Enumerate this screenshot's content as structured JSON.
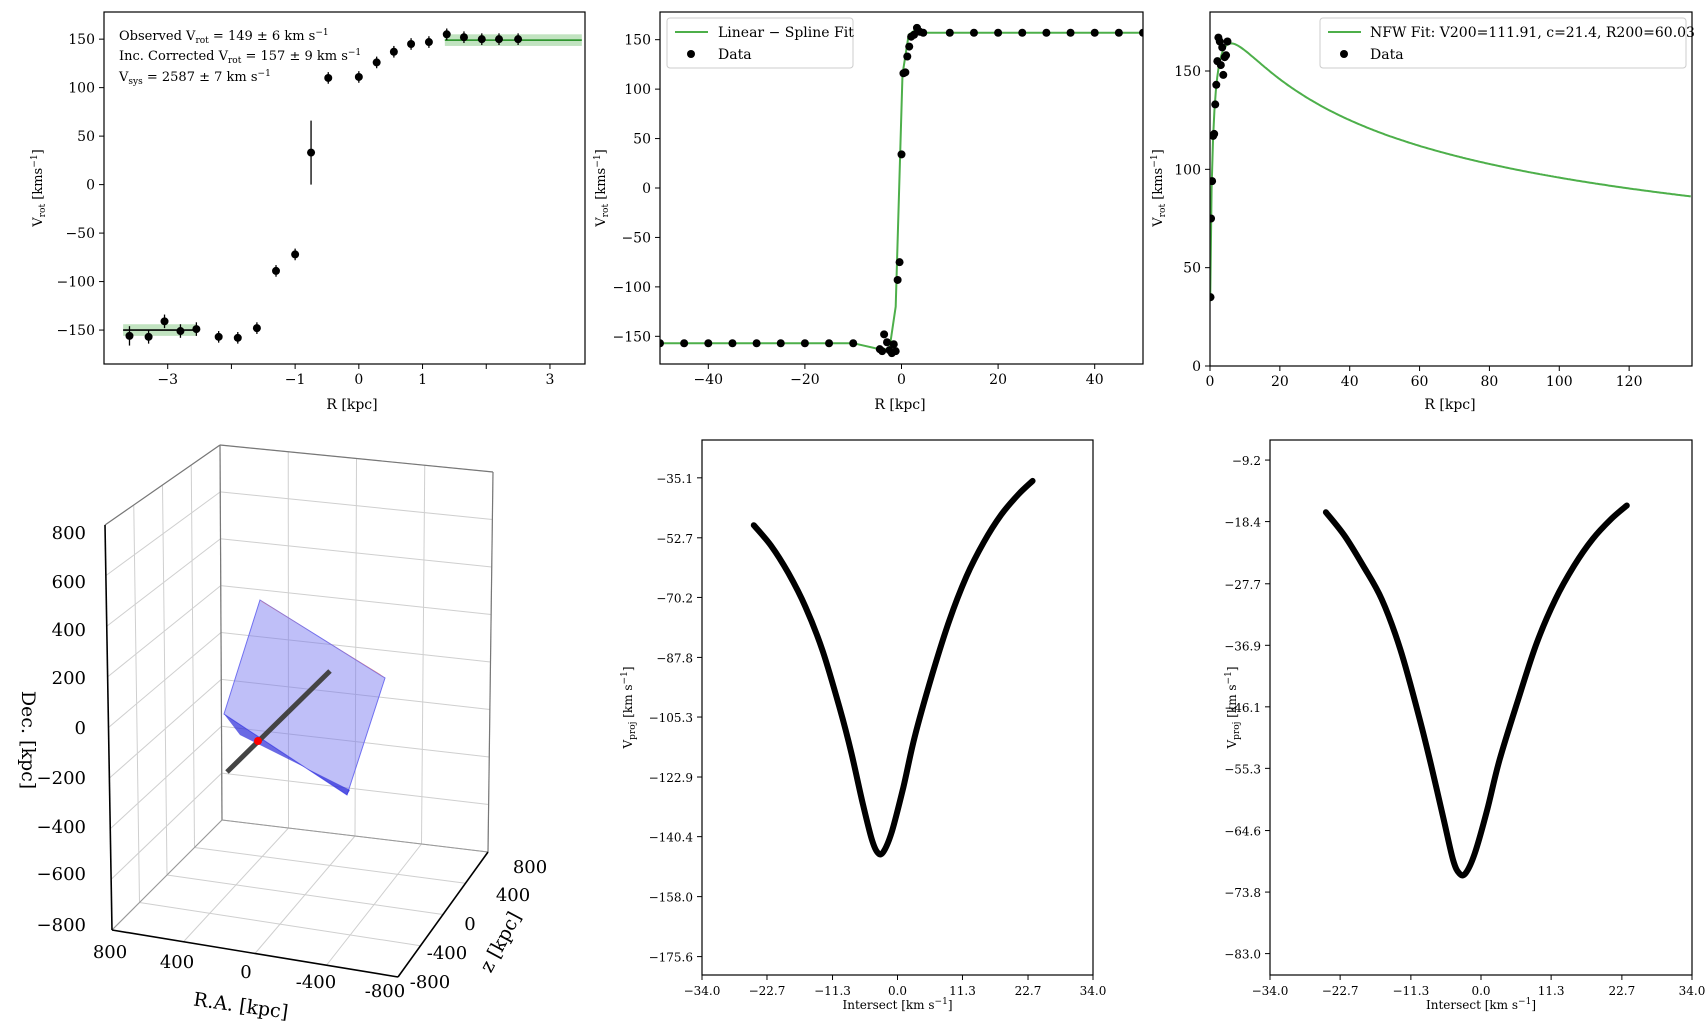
{
  "figure": {
    "colors": {
      "fit": "#4daf4a",
      "data": "#000000",
      "band": "#4daf4a",
      "plane": "#7070f0",
      "planeEdge": "#2a2ad8",
      "axisLine": "#555555",
      "center": "#ff0000",
      "planeRed": "#e08080"
    }
  },
  "chart_data": [
    {
      "type": "scatter",
      "xlabel": "R [kpc]",
      "ylabel": "V_rot [kms^-1]",
      "ylabel_main": "V",
      "ylabel_sub": "rot",
      "ylabel_unit": "[kms",
      "ylabel_unit_sup": "−1",
      "ylabel_close": "]",
      "xlim": [
        -4.0,
        3.55
      ],
      "ylim": [
        -185,
        178
      ],
      "xticks": [
        -3,
        -2,
        -1,
        0,
        1,
        2,
        3
      ],
      "xticklabels": [
        "−3",
        "",
        "−1",
        "0",
        "1",
        "",
        "3"
      ],
      "yticks": [
        -150,
        -100,
        -50,
        0,
        50,
        100,
        150
      ],
      "yticklabels": [
        "−150",
        "−100",
        "−50",
        "0",
        "50",
        "100",
        "150"
      ],
      "annotations": [
        "Observed V_rot = 149 ± 6 km s^-1",
        "Inc. Corrected V_rot = 157 ± 9 km s^-1",
        "V_sys = 2587 ± 7 km s^-1"
      ],
      "bands": [
        {
          "x": [
            -3.7,
            -2.55
          ],
          "y": -150,
          "halfwidth": 6
        },
        {
          "x": [
            1.35,
            3.5
          ],
          "y": 149,
          "halfwidth": 6
        }
      ],
      "points": {
        "x": [
          -3.6,
          -3.3,
          -3.05,
          -2.8,
          -2.55,
          -2.2,
          -1.9,
          -1.6,
          -1.3,
          -1.0,
          -0.75,
          -0.48,
          0.0,
          0.28,
          0.55,
          0.82,
          1.1,
          1.38,
          1.65,
          1.93,
          2.2,
          2.5
        ],
        "y": [
          -156,
          -157,
          -141,
          -151,
          -149,
          -157,
          -158,
          -148,
          -89,
          -72,
          33,
          110,
          111,
          126,
          137,
          145,
          147,
          155,
          152,
          150,
          150,
          150
        ],
        "yerr": [
          10,
          7,
          7,
          7,
          7,
          6,
          6,
          6,
          6,
          6,
          33,
          6,
          6,
          6,
          6,
          6,
          6,
          6,
          6,
          6,
          6,
          6
        ]
      }
    },
    {
      "type": "line",
      "xlabel": "R [kpc]",
      "ylabel": "V_rot [kms^-1]",
      "ylabel_main": "V",
      "ylabel_sub": "rot",
      "ylabel_unit": "[kms",
      "ylabel_unit_sup": "−1",
      "ylabel_close": "]",
      "xlim": [
        -50,
        50
      ],
      "ylim": [
        -178,
        178
      ],
      "xticks": [
        -40,
        -20,
        0,
        20,
        40
      ],
      "xticklabels": [
        "−40",
        "−20",
        "0",
        "20",
        "40"
      ],
      "yticks": [
        -150,
        -100,
        -50,
        0,
        50,
        100,
        150
      ],
      "yticklabels": [
        "−150",
        "−100",
        "−50",
        "0",
        "50",
        "100",
        "150"
      ],
      "legend": {
        "position": "top-left",
        "entries": [
          "Linear − Spline Fit",
          "Data"
        ]
      },
      "series": [
        {
          "name": "Linear − Spline Fit",
          "x": [
            -50,
            -10,
            -4.5,
            -2.5,
            -1.2,
            0.2,
            1.5,
            3.5,
            5,
            10,
            50
          ],
          "y": [
            -157,
            -157,
            -163,
            -163,
            -120,
            115,
            155,
            162,
            157,
            157,
            157
          ]
        },
        {
          "name": "Data",
          "x": [
            -50,
            -45,
            -40,
            -35,
            -30,
            -25,
            -20,
            -15,
            -10,
            -4.5,
            -4,
            -3.6,
            -3,
            -2.5,
            -2,
            -1.6,
            -1.2,
            -0.8,
            -0.4,
            0,
            0.4,
            0.8,
            1.2,
            1.6,
            2.0,
            2.6,
            3.2,
            3.8,
            4.5,
            10,
            15,
            20,
            25,
            30,
            35,
            40,
            45,
            50
          ],
          "y": [
            -157,
            -157,
            -157,
            -157,
            -157,
            -157,
            -157,
            -157,
            -157,
            -163,
            -165,
            -148,
            -156,
            -164,
            -167,
            -158,
            -165,
            -93,
            -75,
            34,
            116,
            117,
            133,
            143,
            153,
            155,
            162,
            158,
            157,
            157,
            157,
            157,
            157,
            157,
            157,
            157,
            157,
            157
          ]
        }
      ]
    },
    {
      "type": "line",
      "xlabel": "R [kpc]",
      "ylabel": "V_rot [kms^-1]",
      "ylabel_main": "V",
      "ylabel_sub": "rot",
      "ylabel_unit": "[kms",
      "ylabel_unit_sup": "−1",
      "ylabel_close": "]",
      "xlim": [
        0,
        138
      ],
      "ylim": [
        0,
        180
      ],
      "xticks": [
        0,
        20,
        40,
        60,
        80,
        100,
        120
      ],
      "xticklabels": [
        "0",
        "20",
        "40",
        "60",
        "80",
        "100",
        "120"
      ],
      "yticks": [
        0,
        50,
        100,
        150
      ],
      "yticklabels": [
        "0",
        "50",
        "100",
        "150"
      ],
      "legend": {
        "position": "top-right",
        "entries": [
          "NFW Fit: V200=111.91, c=21.4, R200=60.03",
          "Data"
        ]
      },
      "nfw": {
        "V200": 111.91,
        "c": 21.4,
        "R200": 60.03
      },
      "series": [
        {
          "name": "Data",
          "x": [
            0.15,
            0.3,
            0.6,
            0.9,
            1.2,
            1.5,
            1.8,
            2.1,
            2.4,
            2.8,
            3.1,
            3.5,
            3.8,
            4.2,
            4.6,
            5.0
          ],
          "y": [
            35,
            75,
            94,
            117,
            118,
            133,
            143,
            155,
            167,
            165,
            153,
            162,
            148,
            157,
            158,
            165
          ]
        }
      ]
    },
    {
      "type": "scatter",
      "xlabel": "R.A. [kpc]",
      "ylabel": "Dec. [kpc]",
      "zlabel": "z [kpc]",
      "xticklabels": [
        "800",
        "400",
        "0",
        "-400",
        "-800"
      ],
      "yticklabels": [
        "800",
        "600",
        "400",
        "200",
        "0",
        "−200",
        "−400",
        "−600",
        "−800"
      ],
      "zticklabels": [
        "800",
        "400",
        "0",
        "-400",
        "-800"
      ]
    },
    {
      "type": "line",
      "xlabel": "Intersect [km s^-1]",
      "xlabel_main": "Intersect [km s",
      "xlabel_sup": "−1",
      "xlabel_close": "]",
      "ylabel": "V_proj [km s^-1]",
      "ylabel_main": "V",
      "ylabel_sub": "proj",
      "ylabel_unit": "[km s",
      "ylabel_unit_sup": "−1",
      "ylabel_close": "]",
      "xlim": [
        -34.0,
        34.0
      ],
      "ylim": [
        -181,
        -24
      ],
      "xticks": [
        -34.0,
        -22.7,
        -11.3,
        0.0,
        11.3,
        22.7,
        34.0
      ],
      "xticklabels": [
        "−34.0",
        "−22.7",
        "−11.3",
        "0.0",
        "11.3",
        "22.7",
        "34.0"
      ],
      "yticks": [
        -35.1,
        -52.7,
        -70.2,
        -87.8,
        -105.3,
        -122.9,
        -140.4,
        -158.0,
        -175.6
      ],
      "yticklabels": [
        "−35.1",
        "−52.7",
        "−70.2",
        "−87.8",
        "−105.3",
        "−122.9",
        "−140.4",
        "−158.0",
        "−175.6"
      ],
      "series": [
        {
          "x": [
            -25.0,
            -22.0,
            -19.0,
            -16.0,
            -13.0,
            -10.0,
            -8.0,
            -6.0,
            -4.5,
            -3.5,
            -2.5,
            -1.0,
            1.0,
            3.0,
            6.0,
            9.0,
            12.0,
            15.0,
            18.0,
            21.0,
            23.5
          ],
          "y": [
            -49,
            -55,
            -63,
            -73,
            -86,
            -103,
            -116,
            -131,
            -141,
            -145,
            -145,
            -139,
            -126,
            -111,
            -93,
            -77,
            -64,
            -54,
            -46,
            -40,
            -36
          ]
        }
      ]
    },
    {
      "type": "line",
      "xlabel": "Intersect [km s^-1]",
      "xlabel_main": "Intersect [km s",
      "xlabel_sup": "−1",
      "xlabel_close": "]",
      "ylabel": "V_proj [km s^-1]",
      "ylabel_main": "V",
      "ylabel_sub": "proj",
      "ylabel_unit": "[km s",
      "ylabel_unit_sup": "−1",
      "ylabel_close": "]",
      "xlim": [
        -34.0,
        34.0
      ],
      "ylim": [
        -86.2,
        -6.2
      ],
      "xticks": [
        -34.0,
        -22.7,
        -11.3,
        0.0,
        11.3,
        22.7,
        34.0
      ],
      "xticklabels": [
        "−34.0",
        "−22.7",
        "−11.3",
        "0.0",
        "11.3",
        "22.7",
        "34.0"
      ],
      "yticks": [
        -9.2,
        -18.4,
        -27.7,
        -36.9,
        -46.1,
        -55.3,
        -64.6,
        -73.8,
        -83.0
      ],
      "yticklabels": [
        "−9.2",
        "−18.4",
        "−27.7",
        "−36.9",
        "−46.1",
        "−55.3",
        "−64.6",
        "−73.8",
        "−83.0"
      ],
      "series": [
        {
          "x": [
            -25.0,
            -22.0,
            -19.0,
            -16.0,
            -13.0,
            -10.0,
            -8.0,
            -6.0,
            -4.5,
            -3.5,
            -2.5,
            -1.0,
            1.0,
            3.0,
            6.0,
            9.0,
            12.0,
            15.0,
            18.0,
            21.0,
            23.5
          ],
          "y": [
            -17,
            -20.5,
            -25,
            -30,
            -37.5,
            -47.5,
            -55,
            -63,
            -69,
            -71,
            -71,
            -68,
            -61.5,
            -54,
            -45,
            -36.5,
            -30,
            -25,
            -21,
            -18,
            -16
          ]
        }
      ]
    }
  ]
}
